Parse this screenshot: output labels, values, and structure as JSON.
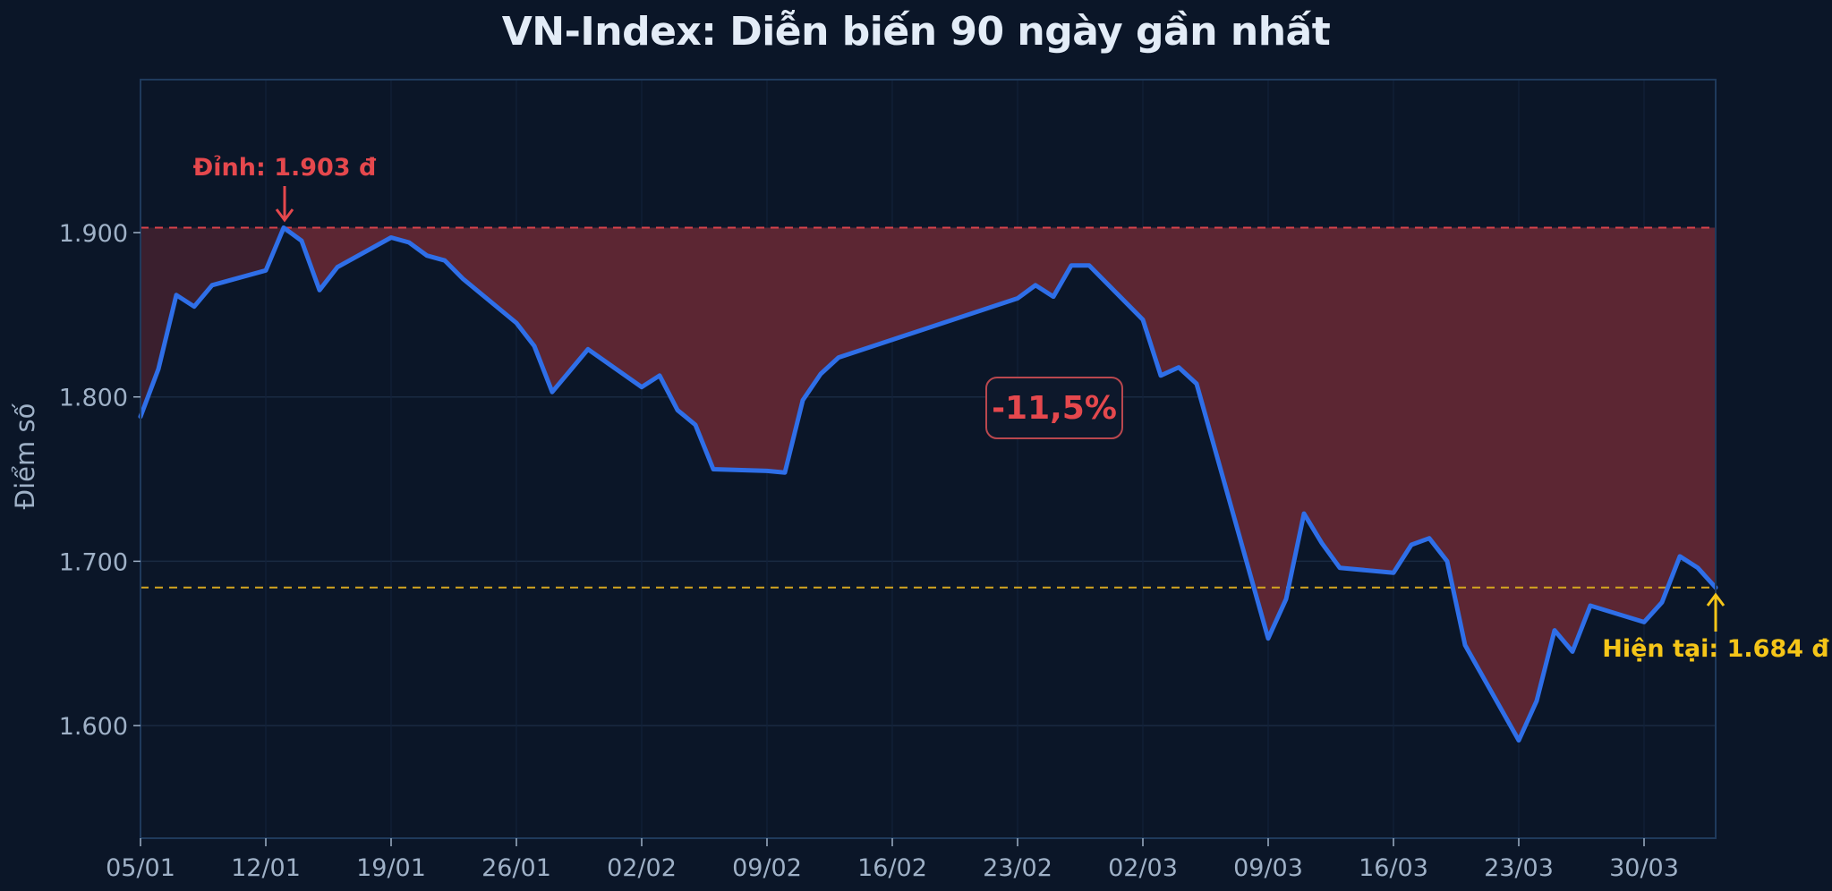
{
  "title": "VN-Index: Diễn biến 90 ngày gần nhất",
  "colors": {
    "background": "#0b1628",
    "plot_border": "#1f3a5c",
    "grid": "#1a2a42",
    "line": "#2f6fe8",
    "drawdown_fill": "#5c2633",
    "pre_peak_fill": "#3a1f2e",
    "peak": "#e5484d",
    "current": "#f5c518",
    "tick_text": "#9fb1c7",
    "title_text": "#e3ecf7"
  },
  "annotations": {
    "peak_label": "Đỉnh: 1.903 đ",
    "current_label": "Hiện tại: 1.684 đ",
    "drawdown_label": "-11,5%"
  },
  "chart_data": {
    "type": "line",
    "title": "VN-Index: Diễn biến 90 ngày gần nhất",
    "xlabel": "",
    "ylabel": "Điểm số",
    "ylim": [
      1532,
      1993
    ],
    "yticks": [
      1600,
      1700,
      1800,
      1900
    ],
    "ytick_labels": [
      "1.600",
      "1.700",
      "1.800",
      "1.900"
    ],
    "xtick_labels": [
      "05/01",
      "12/01",
      "19/01",
      "26/01",
      "02/02",
      "09/02",
      "16/02",
      "23/02",
      "02/03",
      "09/03",
      "16/03",
      "23/03",
      "30/03"
    ],
    "grid": true,
    "legend": null,
    "peak": {
      "date": "13/01",
      "value": 1903
    },
    "current": {
      "date": "03/04",
      "value": 1684
    },
    "drawdown_pct": -11.5,
    "series": [
      {
        "name": "VN-Index",
        "points": [
          {
            "date": "05/01",
            "d": 0,
            "value": 1788
          },
          {
            "date": "06/01",
            "d": 1,
            "value": 1817
          },
          {
            "date": "07/01",
            "d": 2,
            "value": 1862
          },
          {
            "date": "08/01",
            "d": 3,
            "value": 1855
          },
          {
            "date": "09/01",
            "d": 4,
            "value": 1868
          },
          {
            "date": "12/01",
            "d": 7,
            "value": 1877
          },
          {
            "date": "13/01",
            "d": 8,
            "value": 1903
          },
          {
            "date": "14/01",
            "d": 9,
            "value": 1895
          },
          {
            "date": "15/01",
            "d": 10,
            "value": 1865
          },
          {
            "date": "16/01",
            "d": 11,
            "value": 1879
          },
          {
            "date": "19/01",
            "d": 14,
            "value": 1897
          },
          {
            "date": "20/01",
            "d": 15,
            "value": 1894
          },
          {
            "date": "21/01",
            "d": 16,
            "value": 1886
          },
          {
            "date": "22/01",
            "d": 17,
            "value": 1883
          },
          {
            "date": "23/01",
            "d": 18,
            "value": 1872
          },
          {
            "date": "26/01",
            "d": 21,
            "value": 1845
          },
          {
            "date": "27/01",
            "d": 22,
            "value": 1831
          },
          {
            "date": "28/01",
            "d": 23,
            "value": 1803
          },
          {
            "date": "30/01",
            "d": 25,
            "value": 1829
          },
          {
            "date": "02/02",
            "d": 28,
            "value": 1806
          },
          {
            "date": "03/02",
            "d": 29,
            "value": 1813
          },
          {
            "date": "04/02",
            "d": 30,
            "value": 1792
          },
          {
            "date": "05/02",
            "d": 31,
            "value": 1783
          },
          {
            "date": "06/02",
            "d": 32,
            "value": 1756
          },
          {
            "date": "09/02",
            "d": 35,
            "value": 1755
          },
          {
            "date": "10/02",
            "d": 36,
            "value": 1754
          },
          {
            "date": "11/02",
            "d": 37,
            "value": 1798
          },
          {
            "date": "12/02",
            "d": 38,
            "value": 1814
          },
          {
            "date": "13/02",
            "d": 39,
            "value": 1824
          },
          {
            "date": "23/02",
            "d": 49,
            "value": 1860
          },
          {
            "date": "24/02",
            "d": 50,
            "value": 1868
          },
          {
            "date": "25/02",
            "d": 51,
            "value": 1861
          },
          {
            "date": "26/02",
            "d": 52,
            "value": 1880
          },
          {
            "date": "27/02",
            "d": 53,
            "value": 1880
          },
          {
            "date": "02/03",
            "d": 56,
            "value": 1847
          },
          {
            "date": "03/03",
            "d": 57,
            "value": 1813
          },
          {
            "date": "04/03",
            "d": 58,
            "value": 1818
          },
          {
            "date": "05/03",
            "d": 59,
            "value": 1808
          },
          {
            "date": "09/03",
            "d": 63,
            "value": 1653
          },
          {
            "date": "10/03",
            "d": 64,
            "value": 1677
          },
          {
            "date": "11/03",
            "d": 65,
            "value": 1729
          },
          {
            "date": "12/03",
            "d": 66,
            "value": 1711
          },
          {
            "date": "13/03",
            "d": 67,
            "value": 1696
          },
          {
            "date": "16/03",
            "d": 70,
            "value": 1693
          },
          {
            "date": "17/03",
            "d": 71,
            "value": 1710
          },
          {
            "date": "18/03",
            "d": 72,
            "value": 1714
          },
          {
            "date": "19/03",
            "d": 73,
            "value": 1700
          },
          {
            "date": "20/03",
            "d": 74,
            "value": 1649
          },
          {
            "date": "23/03",
            "d": 77,
            "value": 1591
          },
          {
            "date": "24/03",
            "d": 78,
            "value": 1615
          },
          {
            "date": "25/03",
            "d": 79,
            "value": 1658
          },
          {
            "date": "26/03",
            "d": 80,
            "value": 1645
          },
          {
            "date": "27/03",
            "d": 81,
            "value": 1673
          },
          {
            "date": "30/03",
            "d": 84,
            "value": 1663
          },
          {
            "date": "31/03",
            "d": 85,
            "value": 1675
          },
          {
            "date": "01/04",
            "d": 86,
            "value": 1703
          },
          {
            "date": "02/04",
            "d": 87,
            "value": 1696
          },
          {
            "date": "03/04",
            "d": 88,
            "value": 1684
          }
        ]
      }
    ]
  }
}
